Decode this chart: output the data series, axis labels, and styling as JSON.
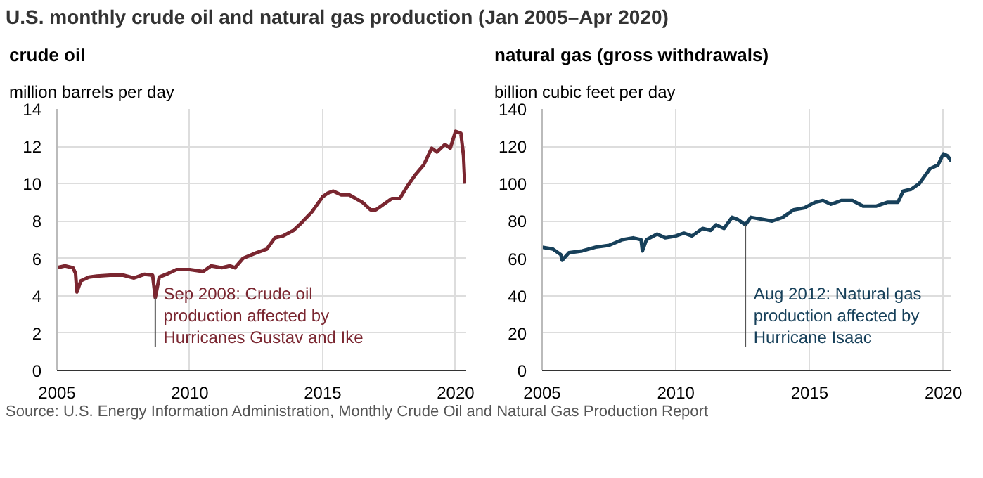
{
  "chart_data": [
    {
      "type": "line",
      "title": "U.S. monthly crude oil and natural gas production (Jan 2005–Apr 2020)",
      "subtitle": "crude oil",
      "ylabel": "million barrels per day",
      "series": [
        {
          "color": "#7a2630",
          "x": [
            2005.0,
            2005.3,
            2005.6,
            2005.7,
            2005.75,
            2005.9,
            2006.2,
            2006.5,
            2007.0,
            2007.5,
            2007.9,
            2008.3,
            2008.6,
            2008.7,
            2008.85,
            2009.2,
            2009.5,
            2010.0,
            2010.5,
            2010.8,
            2011.2,
            2011.5,
            2011.7,
            2012.0,
            2012.5,
            2012.9,
            2013.2,
            2013.5,
            2013.9,
            2014.2,
            2014.6,
            2015.0,
            2015.2,
            2015.4,
            2015.7,
            2016.0,
            2016.5,
            2016.8,
            2017.0,
            2017.3,
            2017.6,
            2017.9,
            2018.2,
            2018.5,
            2018.8,
            2019.1,
            2019.3,
            2019.6,
            2019.8,
            2020.0,
            2020.2,
            2020.3,
            2020.35
          ],
          "values": [
            5.5,
            5.6,
            5.5,
            5.2,
            4.2,
            4.8,
            5.0,
            5.05,
            5.1,
            5.1,
            4.95,
            5.15,
            5.1,
            3.9,
            5.0,
            5.2,
            5.4,
            5.4,
            5.3,
            5.6,
            5.5,
            5.6,
            5.5,
            6.0,
            6.3,
            6.5,
            7.1,
            7.2,
            7.5,
            7.9,
            8.5,
            9.3,
            9.5,
            9.6,
            9.4,
            9.4,
            9.0,
            8.6,
            8.6,
            8.9,
            9.2,
            9.2,
            9.9,
            10.5,
            11.0,
            11.9,
            11.7,
            12.1,
            11.9,
            12.8,
            12.7,
            11.5,
            10.0
          ]
        }
      ],
      "xlim": [
        2005,
        2020.4
      ],
      "xticks": [
        2005,
        2010,
        2015,
        2020
      ],
      "ylim": [
        0,
        14
      ],
      "yticks": [
        0,
        2,
        4,
        6,
        8,
        10,
        12,
        14
      ],
      "grid": true,
      "annotations": [
        {
          "text": "Sep 2008: Crude oil\nproduction affected by\nHurricanes Gustav and Ike",
          "x": 2008.7,
          "y": 3.9
        },
        "Source: U.S. Energy Information Administration, Monthly Crude Oil and Natural Gas Production Report"
      ]
    },
    {
      "type": "line",
      "subtitle": "natural gas (gross withdrawals)",
      "ylabel": "billion cubic feet per day",
      "series": [
        {
          "color": "#17405a",
          "x": [
            2005.0,
            2005.4,
            2005.7,
            2005.75,
            2006.0,
            2006.5,
            2007.0,
            2007.5,
            2008.0,
            2008.4,
            2008.7,
            2008.75,
            2008.9,
            2009.3,
            2009.6,
            2010.0,
            2010.3,
            2010.6,
            2011.0,
            2011.3,
            2011.5,
            2011.8,
            2012.1,
            2012.3,
            2012.6,
            2012.8,
            2013.2,
            2013.6,
            2014.0,
            2014.4,
            2014.8,
            2015.2,
            2015.5,
            2015.8,
            2016.2,
            2016.6,
            2017.0,
            2017.5,
            2017.9,
            2018.3,
            2018.5,
            2018.8,
            2019.1,
            2019.5,
            2019.8,
            2020.0,
            2020.15,
            2020.3
          ],
          "values": [
            66,
            65,
            62,
            59,
            63,
            64,
            66,
            67,
            70,
            71,
            70,
            64,
            70,
            73,
            71,
            72,
            73.5,
            72,
            76,
            75,
            78,
            76,
            82,
            81,
            78,
            82,
            81,
            80,
            82,
            86,
            87,
            90,
            91,
            89,
            91,
            91,
            88,
            88,
            90,
            90,
            96,
            97,
            100,
            108,
            110,
            116,
            115,
            112
          ]
        }
      ],
      "xlim": [
        2005,
        2020.3
      ],
      "xticks": [
        2005,
        2010,
        2015,
        2020
      ],
      "ylim": [
        0,
        140
      ],
      "yticks": [
        0,
        20,
        40,
        60,
        80,
        100,
        120,
        140
      ],
      "grid": true,
      "annotations": [
        {
          "text": "Aug 2012: Natural gas\nproduction affected by\nHurricane Isaac",
          "x": 2012.6,
          "y": 78
        }
      ]
    }
  ]
}
